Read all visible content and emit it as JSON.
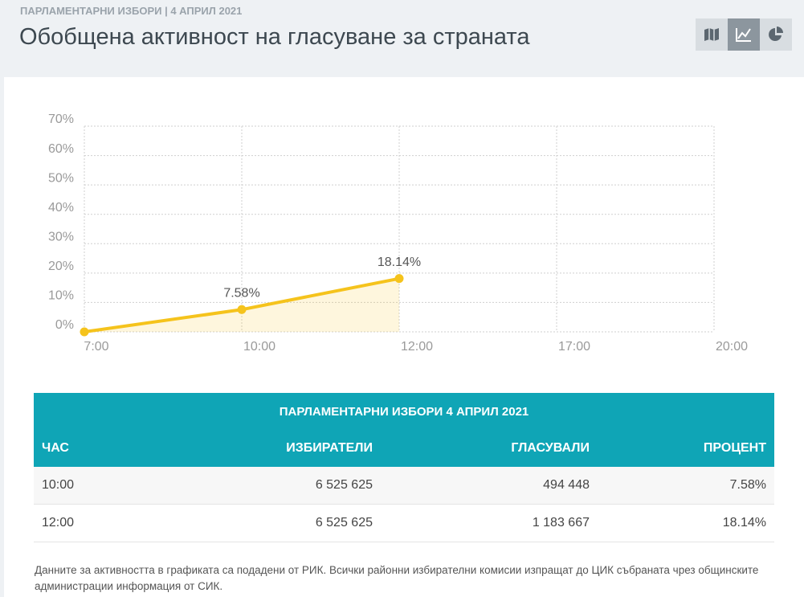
{
  "header": {
    "overline": "ПАРЛАМЕНТАРНИ ИЗБОРИ | 4 АПРИЛ 2021",
    "title": "Обобщена активност на гласуване за страната"
  },
  "chart_data": {
    "type": "line",
    "categories": [
      "7:00",
      "10:00",
      "12:00",
      "17:00",
      "20:00"
    ],
    "series": [
      {
        "color": "#f5c31c",
        "values": [
          0,
          7.58,
          18.14,
          null,
          null
        ],
        "value_labels": [
          null,
          "7.58%",
          "18.14%",
          null,
          null
        ]
      }
    ],
    "ylim": [
      0,
      70
    ],
    "yticks": [
      {
        "value": 0,
        "label": "0%"
      },
      {
        "value": 10,
        "label": "10%"
      },
      {
        "value": 20,
        "label": "20%"
      },
      {
        "value": 30,
        "label": "30%"
      },
      {
        "value": 40,
        "label": "40%"
      },
      {
        "value": 50,
        "label": "50%"
      },
      {
        "value": 60,
        "label": "60%"
      },
      {
        "value": 70,
        "label": "70%"
      }
    ],
    "grid": true
  },
  "table": {
    "title": "ПАРЛАМЕНТАРНИ ИЗБОРИ 4 АПРИЛ 2021",
    "columns": [
      "ЧАС",
      "ИЗБИРАТЕЛИ",
      "ГЛАСУВАЛИ",
      "ПРОЦЕНТ"
    ],
    "rows": [
      [
        "10:00",
        "6 525 625",
        "494 448",
        "7.58%"
      ],
      [
        "12:00",
        "6 525 625",
        "1 183 667",
        "18.14%"
      ]
    ]
  },
  "note": "Данните за активността в графиката са подадени от РИК. Всички районни избирателни комисии изпращат до ЦИК събраната чрез общинските администрации информация от СИК."
}
